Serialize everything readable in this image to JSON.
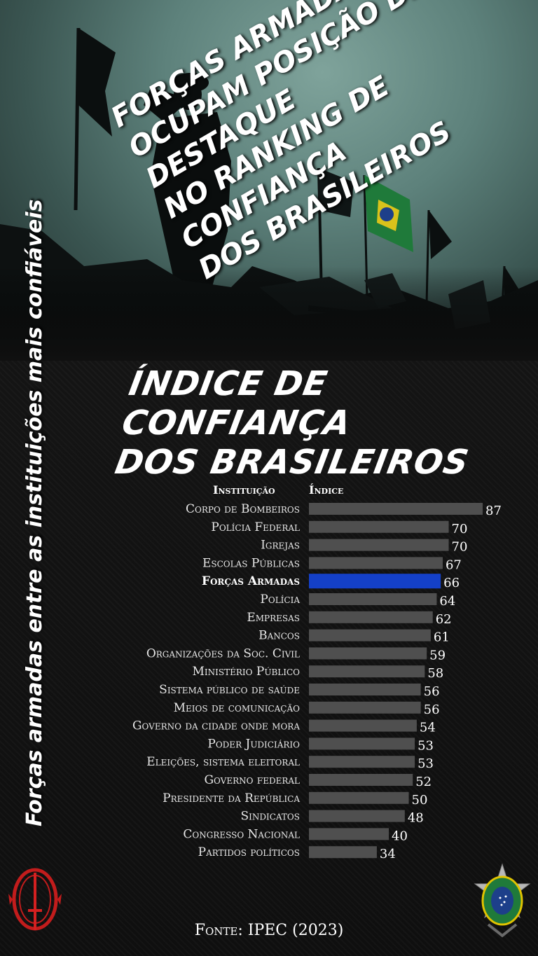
{
  "hero": {
    "title_lines": [
      "Forças Armadas",
      "ocupam posição de destaque",
      "no ranking de confiança",
      "dos brasileiros"
    ]
  },
  "side_text": "Forças armadas entre as instituições mais confiáveis",
  "chart_title": [
    "Índice de confiança",
    "dos brasileiros"
  ],
  "columns": {
    "institution": "Instituição",
    "index": "Índice"
  },
  "chart_data": {
    "type": "bar",
    "orientation": "horizontal",
    "categories": [
      "Corpo de Bombeiros",
      "Polícia Federal",
      "Igrejas",
      "Escolas Públicas",
      "Forças Armadas",
      "Polícia",
      "Empresas",
      "Bancos",
      "Organizações da Soc. Civil",
      "Ministério Público",
      "Sistema público de saúde",
      "Meios de comunicação",
      "Governo da cidade onde mora",
      "Poder Judiciário",
      "Eleições, sistema eleitoral",
      "Governo federal",
      "Presidente da República",
      "Sindicatos",
      "Congresso Nacional",
      "Partidos políticos"
    ],
    "values": [
      87,
      70,
      70,
      67,
      66,
      64,
      62,
      61,
      59,
      58,
      56,
      56,
      54,
      53,
      53,
      52,
      50,
      48,
      40,
      34
    ],
    "highlight": "Forças Armadas",
    "xlim": [
      0,
      87
    ],
    "grid": false,
    "colors": {
      "bar": "#4f4f4f",
      "highlight": "#1440c8",
      "label": "#e8e8e8"
    }
  },
  "source": "Fonte: IPEC (2023)",
  "icons": {
    "left": "red-sword-emblem-icon",
    "right": "army-star-emblem-icon"
  }
}
